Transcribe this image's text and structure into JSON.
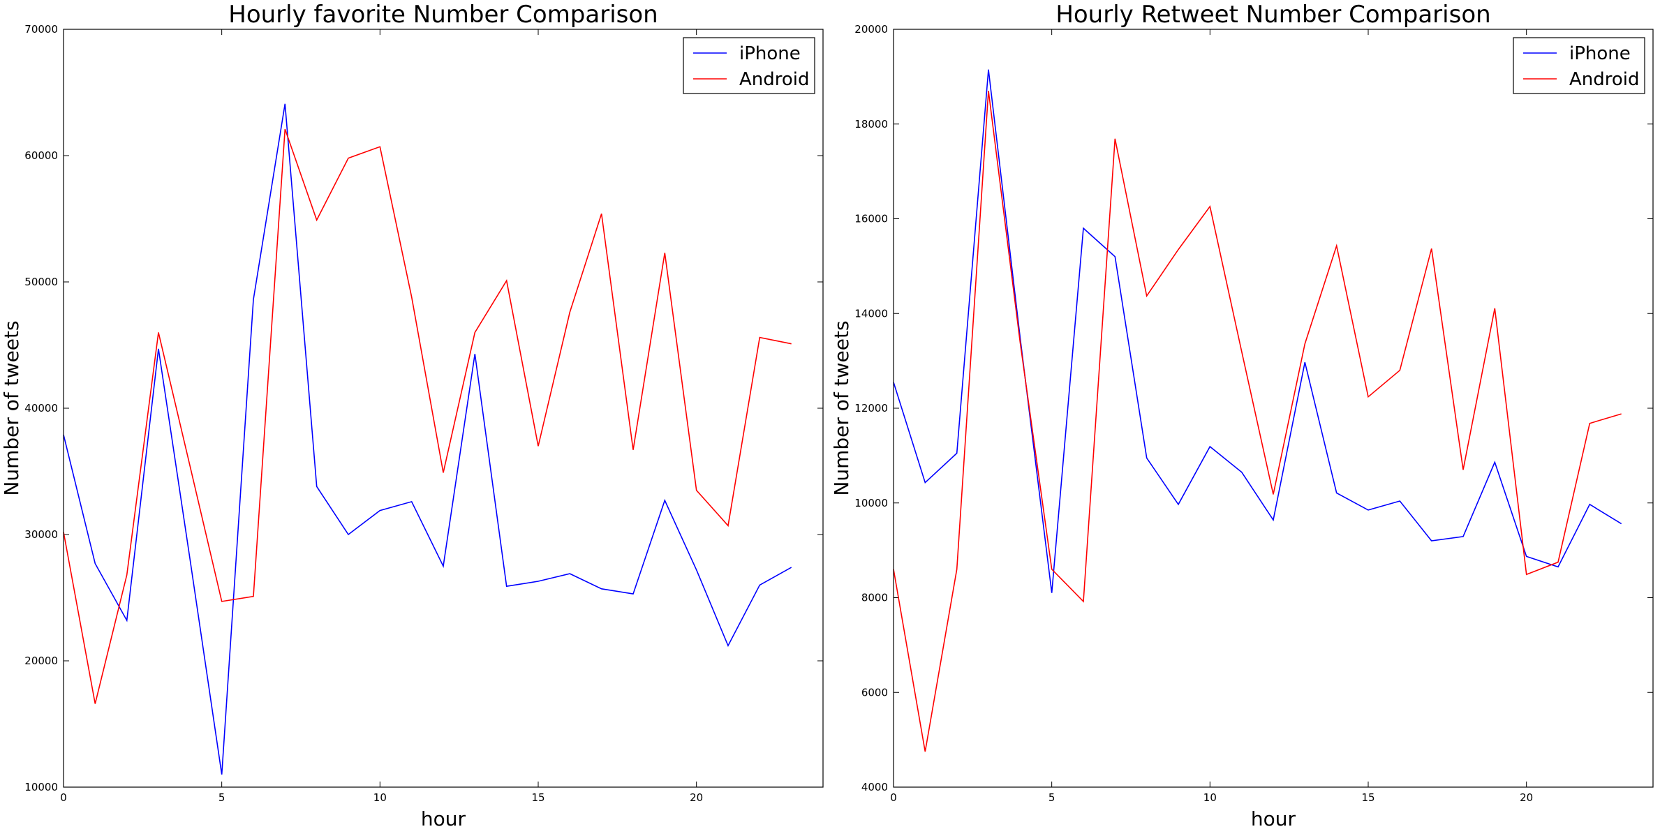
{
  "chart_data": [
    {
      "type": "line",
      "title": "Hourly favorite Number Comparison",
      "xlabel": "hour",
      "ylabel": "Number of tweets",
      "xlim": [
        0,
        24
      ],
      "ylim": [
        10000,
        70000
      ],
      "xticks": [
        0,
        5,
        10,
        15,
        20
      ],
      "yticks": [
        10000,
        20000,
        30000,
        40000,
        50000,
        60000,
        70000
      ],
      "legend_position": "top-right",
      "x": [
        0,
        1,
        2,
        3,
        4,
        5,
        6,
        7,
        8,
        9,
        10,
        11,
        12,
        13,
        14,
        15,
        16,
        17,
        18,
        19,
        20,
        21,
        22,
        23
      ],
      "series": [
        {
          "name": "iPhone",
          "color": "#0000ff",
          "values": [
            37900,
            27700,
            23200,
            44700,
            28000,
            11000,
            48600,
            64100,
            33800,
            30000,
            31900,
            32600,
            27500,
            44300,
            25900,
            26300,
            26900,
            25700,
            25300,
            32700,
            27200,
            21200,
            26000,
            27400
          ]
        },
        {
          "name": "Android",
          "color": "#ff0000",
          "values": [
            30200,
            16600,
            26800,
            46000,
            35400,
            24700,
            25100,
            62100,
            54900,
            59800,
            60700,
            48800,
            34900,
            46000,
            50100,
            37000,
            47600,
            55400,
            36700,
            52300,
            33500,
            30700,
            45600,
            45100
          ]
        }
      ]
    },
    {
      "type": "line",
      "title": "Hourly Retweet Number Comparison",
      "xlabel": "hour",
      "ylabel": "Number of tweets",
      "xlim": [
        0,
        24
      ],
      "ylim": [
        4000,
        20000
      ],
      "xticks": [
        0,
        5,
        10,
        15,
        20
      ],
      "yticks": [
        4000,
        6000,
        8000,
        10000,
        12000,
        14000,
        16000,
        18000,
        20000
      ],
      "legend_position": "top-right",
      "x": [
        0,
        1,
        2,
        3,
        4,
        5,
        6,
        7,
        8,
        9,
        10,
        11,
        12,
        13,
        14,
        15,
        16,
        17,
        18,
        19,
        20,
        21,
        22,
        23
      ],
      "series": [
        {
          "name": "iPhone",
          "color": "#0000ff",
          "values": [
            12550,
            10430,
            11050,
            19150,
            13500,
            8100,
            15800,
            15200,
            10950,
            9970,
            11190,
            10650,
            9640,
            12970,
            10210,
            9850,
            10040,
            9200,
            9290,
            10860,
            8870,
            8650,
            9970,
            9560
          ]
        },
        {
          "name": "Android",
          "color": "#ff0000",
          "values": [
            8600,
            4750,
            8600,
            18700,
            13400,
            8600,
            7920,
            17690,
            14370,
            15350,
            16260,
            13200,
            10180,
            13360,
            15430,
            12240,
            12800,
            15370,
            10700,
            14110,
            8490,
            8750,
            11680,
            11880
          ]
        }
      ]
    }
  ]
}
